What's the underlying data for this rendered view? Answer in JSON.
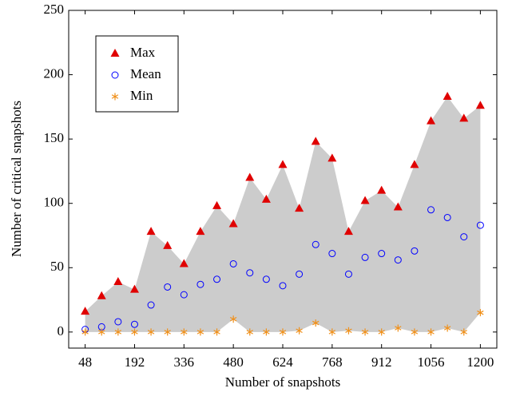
{
  "chart_data": {
    "type": "scatter",
    "x_label": "Number of snapshots",
    "y_label": "Number of critical snapshots",
    "x": [
      48,
      96,
      144,
      192,
      240,
      288,
      336,
      384,
      432,
      480,
      528,
      576,
      624,
      672,
      720,
      768,
      816,
      864,
      912,
      960,
      1008,
      1056,
      1104,
      1152,
      1200
    ],
    "series": [
      {
        "name": "Max",
        "color": "#e00000",
        "marker": "triangle",
        "values": [
          16,
          28,
          39,
          33,
          78,
          67,
          53,
          78,
          98,
          84,
          120,
          103,
          130,
          96,
          148,
          135,
          78,
          102,
          110,
          97,
          130,
          164,
          183,
          166,
          176
        ]
      },
      {
        "name": "Mean",
        "color": "#0000ff",
        "marker": "circle",
        "values": [
          2,
          4,
          8,
          6,
          21,
          35,
          29,
          37,
          41,
          53,
          46,
          41,
          36,
          45,
          68,
          61,
          45,
          58,
          61,
          56,
          63,
          95,
          89,
          74,
          83
        ]
      },
      {
        "name": "Min",
        "color": "#f0901a",
        "marker": "asterisk",
        "values": [
          0,
          0,
          0,
          0,
          0,
          0,
          0,
          0,
          0,
          10,
          0,
          0,
          0,
          1,
          7,
          0,
          1,
          0,
          0,
          3,
          0,
          0,
          3,
          0,
          15
        ]
      }
    ],
    "fill_between": {
      "upper": "Max",
      "lower": "Min",
      "color": "#cccccc"
    },
    "xlim": [
      0,
      1248
    ],
    "xticks": [
      48,
      192,
      336,
      480,
      624,
      768,
      912,
      1056,
      1200
    ],
    "ylim": [
      -12.5,
      250
    ],
    "yticks": [
      0,
      50,
      100,
      150,
      200,
      250
    ],
    "legend": "upper-left"
  }
}
